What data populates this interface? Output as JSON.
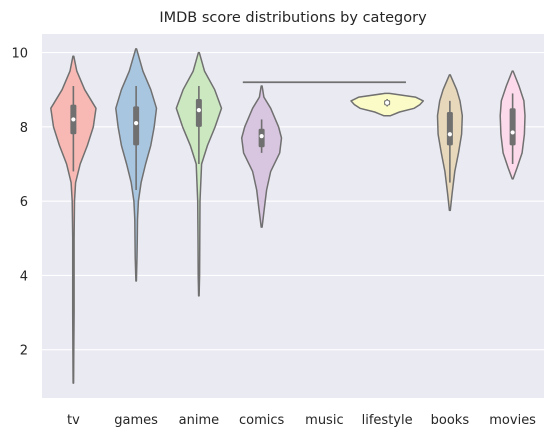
{
  "chart_data": {
    "type": "violin",
    "title": "IMDB score distributions by category",
    "xlabel": "",
    "ylabel": "",
    "ylim": [
      0.7,
      10.5
    ],
    "yticks": [
      2,
      4,
      6,
      8,
      10
    ],
    "grid": true,
    "background": "#EAEAF2",
    "outline_color": "#707070",
    "categories": [
      "tv",
      "games",
      "anime",
      "comics",
      "music",
      "lifestyle",
      "books",
      "movies"
    ],
    "colors": [
      "#F8B9B4",
      "#A9C6E1",
      "#CCE8C1",
      "#D8C5E0",
      "#F7F7C6",
      "#FBFBC8",
      "#E8D8BB",
      "#FDDAEB"
    ],
    "violins": [
      {
        "category": "tv",
        "min": 1.1,
        "max": 9.9,
        "q1": 7.8,
        "median": 8.2,
        "q3": 8.6,
        "whisker_low": 6.8,
        "whisker_high": 9.1,
        "profile": [
          [
            1.1,
            0.01
          ],
          [
            2.0,
            0.02
          ],
          [
            3.0,
            0.03
          ],
          [
            4.0,
            0.03
          ],
          [
            5.0,
            0.03
          ],
          [
            6.0,
            0.05
          ],
          [
            6.5,
            0.1
          ],
          [
            7.0,
            0.3
          ],
          [
            7.5,
            0.62
          ],
          [
            8.0,
            0.88
          ],
          [
            8.5,
            1.0
          ],
          [
            9.0,
            0.5
          ],
          [
            9.5,
            0.15
          ],
          [
            9.9,
            0.02
          ]
        ]
      },
      {
        "category": "games",
        "min": 3.85,
        "max": 10.1,
        "q1": 7.5,
        "median": 8.1,
        "q3": 8.55,
        "whisker_low": 6.3,
        "whisker_high": 9.1,
        "profile": [
          [
            3.85,
            0.01
          ],
          [
            4.5,
            0.04
          ],
          [
            5.0,
            0.05
          ],
          [
            5.5,
            0.06
          ],
          [
            6.0,
            0.1
          ],
          [
            6.5,
            0.22
          ],
          [
            7.0,
            0.42
          ],
          [
            7.5,
            0.65
          ],
          [
            8.0,
            0.8
          ],
          [
            8.5,
            0.9
          ],
          [
            9.0,
            0.65
          ],
          [
            9.5,
            0.3
          ],
          [
            10.1,
            0.02
          ]
        ]
      },
      {
        "category": "anime",
        "min": 3.45,
        "max": 10.0,
        "q1": 8.0,
        "median": 8.45,
        "q3": 8.75,
        "whisker_low": 7.0,
        "whisker_high": 9.1,
        "profile": [
          [
            3.45,
            0.01
          ],
          [
            4.0,
            0.03
          ],
          [
            5.0,
            0.04
          ],
          [
            6.0,
            0.05
          ],
          [
            7.0,
            0.12
          ],
          [
            7.5,
            0.38
          ],
          [
            8.0,
            0.72
          ],
          [
            8.5,
            1.0
          ],
          [
            9.0,
            0.7
          ],
          [
            9.5,
            0.25
          ],
          [
            10.0,
            0.02
          ]
        ]
      },
      {
        "category": "comics",
        "min": 5.3,
        "max": 9.1,
        "q1": 7.45,
        "median": 7.75,
        "q3": 7.95,
        "whisker_low": 7.3,
        "whisker_high": 8.2,
        "profile": [
          [
            5.3,
            0.02
          ],
          [
            5.8,
            0.12
          ],
          [
            6.3,
            0.22
          ],
          [
            6.8,
            0.4
          ],
          [
            7.3,
            0.8
          ],
          [
            7.7,
            0.88
          ],
          [
            8.0,
            0.75
          ],
          [
            8.5,
            0.4
          ],
          [
            8.8,
            0.1
          ],
          [
            9.1,
            0.02
          ]
        ]
      },
      {
        "category": "music",
        "min": 9.2,
        "max": 9.2,
        "q1": 9.2,
        "median": 9.2,
        "q3": 9.2,
        "whisker_low": 9.2,
        "whisker_high": 9.2,
        "profile": [],
        "halfwidth_categories": 1.3
      },
      {
        "category": "lifestyle",
        "min": 8.3,
        "max": 8.9,
        "q1": 8.58,
        "median": 8.65,
        "q3": 8.72,
        "whisker_low": 8.55,
        "whisker_high": 8.75,
        "profile": [
          [
            8.3,
            0.15
          ],
          [
            8.4,
            0.55
          ],
          [
            8.5,
            1.2
          ],
          [
            8.6,
            1.45
          ],
          [
            8.7,
            1.6
          ],
          [
            8.8,
            1.25
          ],
          [
            8.9,
            0.1
          ]
        ]
      },
      {
        "category": "books",
        "min": 5.75,
        "max": 9.4,
        "q1": 7.5,
        "median": 7.8,
        "q3": 8.4,
        "whisker_low": 6.5,
        "whisker_high": 8.7,
        "profile": [
          [
            5.75,
            0.02
          ],
          [
            6.2,
            0.1
          ],
          [
            6.8,
            0.22
          ],
          [
            7.3,
            0.38
          ],
          [
            7.8,
            0.52
          ],
          [
            8.3,
            0.55
          ],
          [
            8.7,
            0.45
          ],
          [
            9.0,
            0.3
          ],
          [
            9.4,
            0.02
          ]
        ]
      },
      {
        "category": "movies",
        "min": 6.6,
        "max": 9.5,
        "q1": 7.5,
        "median": 7.85,
        "q3": 8.5,
        "whisker_low": 7.0,
        "whisker_high": 8.9,
        "profile": [
          [
            6.6,
            0.02
          ],
          [
            6.9,
            0.2
          ],
          [
            7.3,
            0.42
          ],
          [
            7.8,
            0.52
          ],
          [
            8.3,
            0.55
          ],
          [
            8.7,
            0.5
          ],
          [
            9.1,
            0.28
          ],
          [
            9.5,
            0.02
          ]
        ]
      }
    ]
  }
}
